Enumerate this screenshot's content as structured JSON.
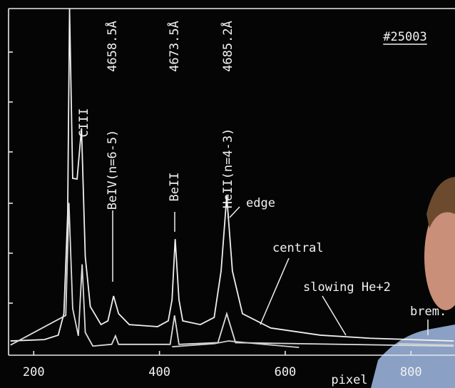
{
  "chart_data": {
    "type": "line",
    "annotations": [
      "4658.5Å",
      "4673.5Å",
      "4685.2Å",
      "CIII",
      "BeIV(n=6-5)",
      "BeII",
      "HeII(n=4-3)",
      "#25003",
      "pixel"
    ],
    "xlim": [
      160,
      870
    ],
    "ylim": [
      0,
      100
    ],
    "xticks": [
      200,
      400,
      600,
      800
    ],
    "series": [
      {
        "name": "edge",
        "color": "#f0f0f0",
        "x": [
          163,
          217,
          239,
          248,
          254,
          257,
          262,
          269,
          276,
          282,
          290,
          307,
          318,
          327,
          335,
          352,
          397,
          414,
          420,
          425,
          431,
          437,
          465,
          487,
          498,
          507,
          516,
          532,
          577,
          656,
          735,
          868
        ],
        "values": [
          2.5,
          2.9,
          4.2,
          10.5,
          39.7,
          100,
          50.2,
          50,
          64.9,
          27.2,
          12.6,
          7.3,
          8.4,
          15.7,
          10.5,
          7.3,
          6.7,
          8.4,
          14.6,
          32.4,
          14.6,
          8.4,
          7.3,
          9.4,
          23,
          45,
          23,
          10.5,
          6.3,
          4.2,
          3.3,
          2.5
        ]
      },
      {
        "name": "central",
        "color": "#dcdcdc",
        "x": [
          163,
          251,
          256,
          262,
          271,
          277,
          282,
          294,
          324,
          330,
          335,
          417,
          424,
          431,
          493,
          507,
          521,
          868
        ],
        "values": [
          1.3,
          10,
          43,
          12,
          4,
          25,
          5,
          1,
          1.5,
          4,
          1.5,
          1.5,
          10,
          1.5,
          2,
          10.5,
          2,
          1
        ]
      },
      {
        "name": "slowing He+2",
        "color": "#cfcfcf",
        "x": [
          420,
          487,
          510,
          555,
          622
        ],
        "values": [
          0.8,
          1.7,
          2.5,
          1.7,
          0.6
        ]
      },
      {
        "name": "brem.",
        "color": "#cfcfcf",
        "x": [
          780,
          868
        ],
        "values": [
          1.7,
          1.3
        ]
      }
    ]
  }
}
